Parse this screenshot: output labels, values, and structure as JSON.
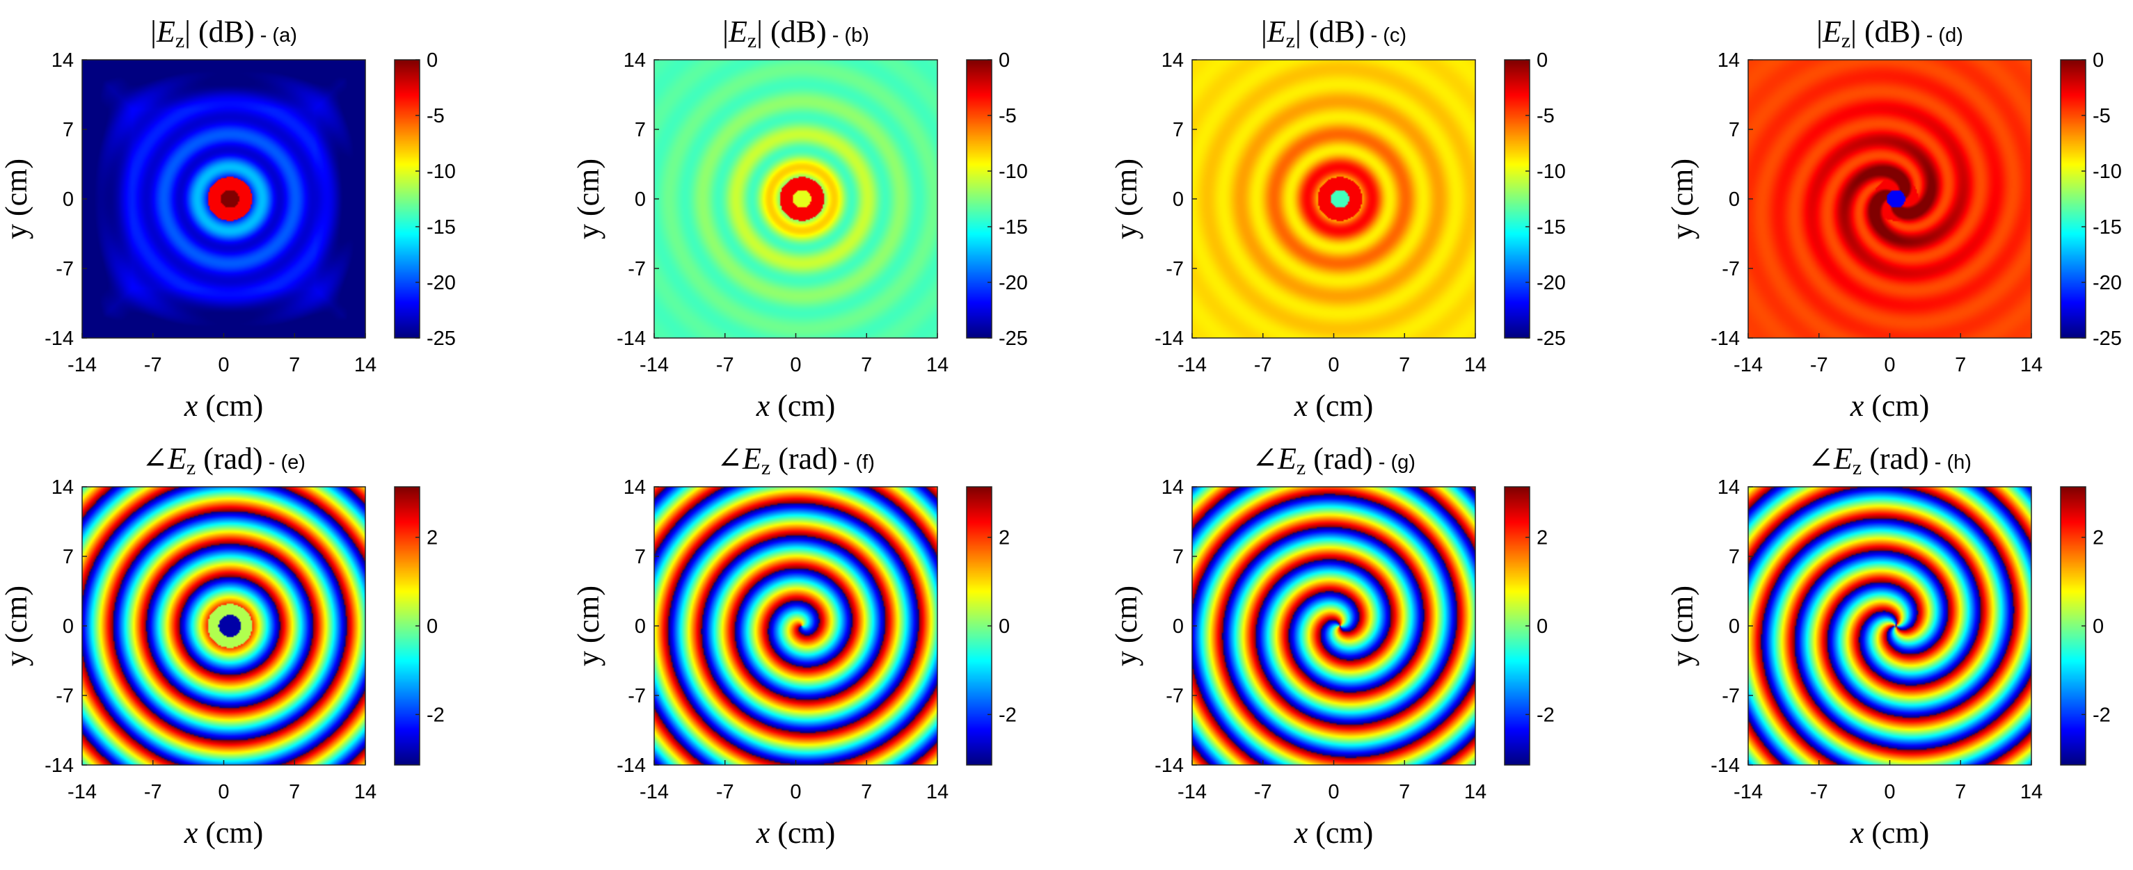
{
  "figure_title": "",
  "chart_data": [
    {
      "type": "heatmap",
      "panel": "(a)",
      "title": {
        "quantity": "|E_z|",
        "unit": "(dB)",
        "tag": "- (a)"
      },
      "xlabel": "x (cm)",
      "ylabel": "y (cm)",
      "xlim": [
        -14,
        14
      ],
      "ylim": [
        -14,
        14
      ],
      "x_ticks": [
        -14,
        -7,
        0,
        7,
        14
      ],
      "y_ticks": [
        14,
        7,
        0,
        -7,
        -14
      ],
      "colorbar": {
        "range": [
          -25,
          0
        ],
        "ticks": [
          0,
          -5,
          -10,
          -15,
          -20,
          -25
        ],
        "colormap": "jet"
      },
      "field": {
        "kind": "magnitude",
        "rings": "concentric",
        "center_value_db": 0,
        "background_db": -23,
        "spiral_charge": 0
      }
    },
    {
      "type": "heatmap",
      "panel": "(b)",
      "title": {
        "quantity": "|E_z|",
        "unit": "(dB)",
        "tag": "- (b)"
      },
      "xlabel": "x (cm)",
      "ylabel": "y (cm)",
      "xlim": [
        -14,
        14
      ],
      "ylim": [
        -14,
        14
      ],
      "x_ticks": [
        -14,
        -7,
        0,
        7,
        14
      ],
      "y_ticks": [
        14,
        7,
        0,
        -7,
        -14
      ],
      "colorbar": {
        "range": [
          -25,
          0
        ],
        "ticks": [
          0,
          -5,
          -10,
          -15,
          -20,
          -25
        ],
        "colormap": "jet"
      },
      "field": {
        "kind": "magnitude",
        "rings": "concentric",
        "center_value_db": -10,
        "background_db": -14,
        "spiral_charge": 1
      }
    },
    {
      "type": "heatmap",
      "panel": "(c)",
      "title": {
        "quantity": "|E_z|",
        "unit": "(dB)",
        "tag": "- (c)"
      },
      "xlabel": "x (cm)",
      "ylabel": "y (cm)",
      "xlim": [
        -14,
        14
      ],
      "ylim": [
        -14,
        14
      ],
      "x_ticks": [
        -14,
        -7,
        0,
        7,
        14
      ],
      "y_ticks": [
        14,
        7,
        0,
        -7,
        -14
      ],
      "colorbar": {
        "range": [
          -25,
          0
        ],
        "ticks": [
          0,
          -5,
          -10,
          -15,
          -20,
          -25
        ],
        "colormap": "jet"
      },
      "field": {
        "kind": "magnitude",
        "rings": "concentric",
        "center_value_db": -14,
        "background_db": -9,
        "spiral_charge": 2
      }
    },
    {
      "type": "heatmap",
      "panel": "(d)",
      "title": {
        "quantity": "|E_z|",
        "unit": "(dB)",
        "tag": "- (d)"
      },
      "xlabel": "x (cm)",
      "ylabel": "y (cm)",
      "xlim": [
        -14,
        14
      ],
      "ylim": [
        -14,
        14
      ],
      "x_ticks": [
        -14,
        -7,
        0,
        7,
        14
      ],
      "y_ticks": [
        14,
        7,
        0,
        -7,
        -14
      ],
      "colorbar": {
        "range": [
          -25,
          0
        ],
        "ticks": [
          0,
          -5,
          -10,
          -15,
          -20,
          -25
        ],
        "colormap": "jet"
      },
      "field": {
        "kind": "magnitude",
        "rings": "spiral-arms",
        "center_value_db": -22,
        "background_db": -5,
        "spiral_charge": 3
      }
    },
    {
      "type": "heatmap",
      "panel": "(e)",
      "title": {
        "quantity": "∠E_z",
        "unit": "(rad)",
        "tag": "- (e)"
      },
      "xlabel": "x (cm)",
      "ylabel": "y (cm)",
      "xlim": [
        -14,
        14
      ],
      "ylim": [
        -14,
        14
      ],
      "x_ticks": [
        -14,
        -7,
        0,
        7,
        14
      ],
      "y_ticks": [
        14,
        7,
        0,
        -7,
        -14
      ],
      "colorbar": {
        "range": [
          -3.14,
          3.14
        ],
        "ticks": [
          2,
          0,
          -2
        ],
        "colormap": "jet"
      },
      "field": {
        "kind": "phase",
        "rings": "concentric",
        "spiral_charge": 0
      }
    },
    {
      "type": "heatmap",
      "panel": "(f)",
      "title": {
        "quantity": "∠E_z",
        "unit": "(rad)",
        "tag": "- (f)"
      },
      "xlabel": "x (cm)",
      "ylabel": "y (cm)",
      "xlim": [
        -14,
        14
      ],
      "ylim": [
        -14,
        14
      ],
      "x_ticks": [
        -14,
        -7,
        0,
        7,
        14
      ],
      "y_ticks": [
        14,
        7,
        0,
        -7,
        -14
      ],
      "colorbar": {
        "range": [
          -3.14,
          3.14
        ],
        "ticks": [
          2,
          0,
          -2
        ],
        "colormap": "jet"
      },
      "field": {
        "kind": "phase",
        "rings": "spiral",
        "spiral_charge": 1
      }
    },
    {
      "type": "heatmap",
      "panel": "(g)",
      "title": {
        "quantity": "∠E_z",
        "unit": "(rad)",
        "tag": "- (g)"
      },
      "xlabel": "x (cm)",
      "ylabel": "y (cm)",
      "xlim": [
        -14,
        14
      ],
      "ylim": [
        -14,
        14
      ],
      "x_ticks": [
        -14,
        -7,
        0,
        7,
        14
      ],
      "y_ticks": [
        14,
        7,
        0,
        -7,
        -14
      ],
      "colorbar": {
        "range": [
          -3.14,
          3.14
        ],
        "ticks": [
          2,
          0,
          -2
        ],
        "colormap": "jet"
      },
      "field": {
        "kind": "phase",
        "rings": "spiral",
        "spiral_charge": 2
      }
    },
    {
      "type": "heatmap",
      "panel": "(h)",
      "title": {
        "quantity": "∠E_z",
        "unit": "(rad)",
        "tag": "- (h)"
      },
      "xlabel": "x (cm)",
      "ylabel": "y (cm)",
      "xlim": [
        -14,
        14
      ],
      "ylim": [
        -14,
        14
      ],
      "x_ticks": [
        -14,
        -7,
        0,
        7,
        14
      ],
      "y_ticks": [
        14,
        7,
        0,
        -7,
        -14
      ],
      "colorbar": {
        "range": [
          -3.14,
          3.14
        ],
        "ticks": [
          2,
          0,
          -2
        ],
        "colormap": "jet"
      },
      "field": {
        "kind": "phase",
        "rings": "spiral",
        "spiral_charge": 3
      }
    }
  ]
}
